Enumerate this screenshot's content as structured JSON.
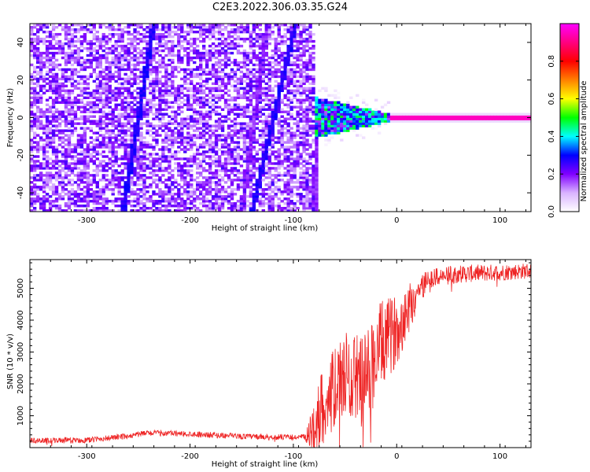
{
  "figure_title": "C2E3.2022.306.03.35.G24",
  "chart_data": [
    {
      "type": "heatmap",
      "title": "",
      "xlabel": "Height of straight line (km)",
      "ylabel": "Frequency (Hz)",
      "xlim": [
        -355,
        130
      ],
      "ylim": [
        -50,
        50
      ],
      "xticks": [
        -300,
        -200,
        -100,
        0,
        100
      ],
      "yticks": [
        -40,
        -20,
        0,
        20,
        40
      ],
      "colorbar": {
        "label": "Normalized spectral amplitude",
        "range": [
          0,
          1
        ],
        "ticks": [
          "0.0",
          "0.2",
          "0.4",
          "0.6",
          "0.8"
        ],
        "colormap": [
          "#ffffff",
          "#d9b3ff",
          "#8000ff",
          "#0000ff",
          "#00ffff",
          "#00ff00",
          "#ffff00",
          "#ff8000",
          "#ff0000",
          "#ff0080",
          "#ff00ff"
        ]
      },
      "features": {
        "noise_region_x": [
          -355,
          -80
        ],
        "noise_amplitude": 0.25,
        "diagonal_streaks": [
          {
            "x_at_freq_min": -265,
            "x_at_freq_max": -235,
            "amplitude": 0.25
          },
          {
            "x_at_freq_min": -140,
            "x_at_freq_max": -98,
            "amplitude": 0.25
          },
          {
            "x_at_freq_min": -150,
            "x_at_freq_max": -125,
            "amplitude": 0.15
          },
          {
            "x_at_freq_min": -80,
            "x_at_freq_max": -72,
            "amplitude": 0.15
          }
        ],
        "transition_region_x": [
          -80,
          -5
        ],
        "signal_line": {
          "freq": 0,
          "x_start": -5,
          "x_end": 130,
          "amplitude": 0.95
        }
      }
    },
    {
      "type": "line",
      "title": "",
      "xlabel": "Height of straight line (km)",
      "ylabel": "SNR (10 * v/v)",
      "xlim": [
        -355,
        130
      ],
      "ylim": [
        0,
        5900
      ],
      "xticks": [
        -300,
        -200,
        -100,
        0,
        100
      ],
      "yticks": [
        1000,
        2000,
        3000,
        4000,
        5000
      ],
      "color": "#ee2222",
      "profile": [
        {
          "x": -355,
          "snr": 220
        },
        {
          "x": -300,
          "snr": 230
        },
        {
          "x": -270,
          "snr": 330
        },
        {
          "x": -240,
          "snr": 460
        },
        {
          "x": -200,
          "snr": 430
        },
        {
          "x": -150,
          "snr": 350
        },
        {
          "x": -100,
          "snr": 320
        },
        {
          "x": -85,
          "snr": 340
        },
        {
          "x": -70,
          "snr": 1400
        },
        {
          "x": -50,
          "snr": 2300
        },
        {
          "x": -30,
          "snr": 2200
        },
        {
          "x": -15,
          "snr": 3200
        },
        {
          "x": 0,
          "snr": 3700
        },
        {
          "x": 15,
          "snr": 4600
        },
        {
          "x": 30,
          "snr": 5300
        },
        {
          "x": 60,
          "snr": 5450
        },
        {
          "x": 100,
          "snr": 5500
        },
        {
          "x": 130,
          "snr": 5550
        }
      ],
      "noise_amplitude": [
        {
          "x": -355,
          "amp": 90
        },
        {
          "x": -90,
          "amp": 90
        },
        {
          "x": -75,
          "amp": 1200
        },
        {
          "x": -20,
          "amp": 1500
        },
        {
          "x": 10,
          "amp": 900
        },
        {
          "x": 30,
          "amp": 300
        },
        {
          "x": 130,
          "amp": 250
        }
      ]
    }
  ]
}
